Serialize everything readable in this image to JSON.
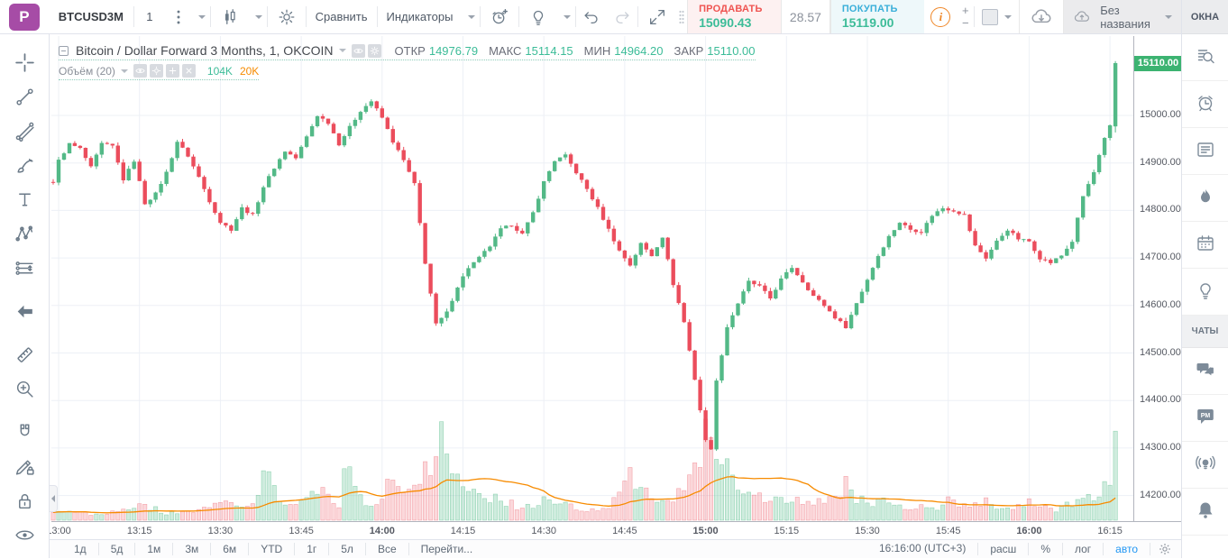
{
  "header": {
    "logo": "P",
    "symbol": "BTCUSD3M",
    "interval": "1",
    "compare_label": "Сравнить",
    "indicators_label": "Индикаторы",
    "sell_label": "ПРОДАВАТЬ",
    "sell_price": "15090.43",
    "spread": "28.57",
    "buy_label": "ПОКУПАТЬ",
    "buy_price": "15119.00",
    "plus_label": "+",
    "minus_label": "−",
    "layout_title": "Без названия",
    "icon_names": [
      "menu-dots-icon",
      "chart-style-candles-icon",
      "settings-gear-icon",
      "alert-add-icon",
      "ideas-bulb-icon",
      "undo-icon",
      "redo-icon",
      "fullscreen-icon",
      "drag-handle-icon",
      "info-icon",
      "layout-grid-icon",
      "cloud-download-icon",
      "cloud-upload-icon",
      "caret-down-icon"
    ]
  },
  "legend": {
    "title": "Bitcoin / Dollar Forward 3 Months, 1, OKCOIN",
    "open_label": "ОТКР",
    "open": "14976.79",
    "high_label": "МАКС",
    "high": "15114.15",
    "low_label": "МИН",
    "low": "14964.20",
    "close_label": "ЗАКР",
    "close": "15110.00",
    "volume_label": "Объём (20)",
    "volume_value": "104K",
    "volume_ma_value": "20K"
  },
  "left_toolbar": {
    "tools": [
      {
        "name": "crosshair-tool",
        "icon": "crosshair",
        "active": true
      },
      {
        "name": "trend-line-tool",
        "icon": "trendline"
      },
      {
        "name": "gann-fibonacci-tool",
        "icon": "gann"
      },
      {
        "name": "brush-drawing-tool",
        "icon": "brush"
      },
      {
        "name": "text-tool",
        "icon": "text"
      },
      {
        "name": "xabcd-pattern-tool",
        "icon": "pattern"
      },
      {
        "name": "forecast-tool",
        "icon": "forecast",
        "gap_after": true
      },
      {
        "name": "back-arrow-tool",
        "icon": "backarrow",
        "dark": true,
        "gap_after": true
      },
      {
        "name": "measure-ruler-tool",
        "icon": "ruler"
      },
      {
        "name": "zoom-in-tool",
        "icon": "zoomin",
        "gap_after": true
      },
      {
        "name": "magnet-mode-tool",
        "icon": "magnet"
      },
      {
        "name": "drawing-lock-tool",
        "icon": "editlock"
      },
      {
        "name": "lock-all-tool",
        "icon": "lock"
      },
      {
        "name": "hide-all-tool",
        "icon": "eye"
      }
    ]
  },
  "right_sidebar": {
    "windows_label": "ОКНА",
    "chats_label": "ЧАТЫ",
    "top_icons": [
      {
        "name": "watchlist-icon",
        "icon": "watchlist"
      },
      {
        "name": "alerts-clock-icon",
        "icon": "alarm"
      },
      {
        "name": "news-icon",
        "icon": "news"
      },
      {
        "name": "hotlist-flame-icon",
        "icon": "flame"
      },
      {
        "name": "calendar-icon",
        "icon": "calendar"
      },
      {
        "name": "ideas-bulb-icon",
        "icon": "bulb"
      }
    ],
    "chat_icons": [
      {
        "name": "public-chats-icon",
        "icon": "chats"
      },
      {
        "name": "private-messages-icon",
        "icon": "pm"
      },
      {
        "name": "broadcast-ideas-icon",
        "icon": "broadcast"
      },
      {
        "name": "notifications-bell-icon",
        "icon": "bell"
      }
    ]
  },
  "bottom_bar": {
    "ranges": [
      "1д",
      "5д",
      "1м",
      "3м",
      "6м",
      "YTD",
      "1г",
      "5л",
      "Все"
    ],
    "goto_label": "Перейти...",
    "clock": "16:16:00 (UTC+3)",
    "extended_label": "расш",
    "percent_label": "%",
    "log_label": "лог",
    "auto_label": "авто"
  },
  "chart_data": {
    "type": "candlestick",
    "title": "Bitcoin / Dollar Forward 3 Months, 1, OKCOIN",
    "exchange": "OKCOIN",
    "interval_minutes": 1,
    "x_ticks": [
      "13:00",
      "13:15",
      "13:30",
      "13:45",
      "14:00",
      "14:15",
      "14:30",
      "14:45",
      "15:00",
      "15:15",
      "15:30",
      "15:45",
      "16:00",
      "16:15"
    ],
    "x_ticks_bold": [
      "14:00",
      "15:00",
      "16:00"
    ],
    "y_ticks": [
      15000,
      14900,
      14800,
      14700,
      14600,
      14500,
      14400,
      14300,
      14200
    ],
    "ylim": [
      14160,
      15170
    ],
    "grid": true,
    "last_price_label": "15110.00",
    "last_bar": {
      "open": 14976.79,
      "high": 15114.15,
      "low": 14964.2,
      "close": 15110.0
    },
    "session_low": 14290,
    "session_high": 15114.15,
    "price_anchors": [
      [
        -1,
        14860
      ],
      [
        0,
        14905
      ],
      [
        2,
        14940
      ],
      [
        4,
        14930
      ],
      [
        6,
        14890
      ],
      [
        8,
        14940
      ],
      [
        10,
        14935
      ],
      [
        12,
        14865
      ],
      [
        14,
        14905
      ],
      [
        16,
        14815
      ],
      [
        18,
        14835
      ],
      [
        20,
        14880
      ],
      [
        22,
        14945
      ],
      [
        24,
        14915
      ],
      [
        26,
        14870
      ],
      [
        28,
        14820
      ],
      [
        30,
        14775
      ],
      [
        32,
        14760
      ],
      [
        34,
        14805
      ],
      [
        36,
        14790
      ],
      [
        38,
        14850
      ],
      [
        40,
        14890
      ],
      [
        42,
        14925
      ],
      [
        44,
        14910
      ],
      [
        46,
        14955
      ],
      [
        48,
        15000
      ],
      [
        50,
        14985
      ],
      [
        52,
        14940
      ],
      [
        54,
        14975
      ],
      [
        56,
        15010
      ],
      [
        58,
        15030
      ],
      [
        60,
        14995
      ],
      [
        62,
        14945
      ],
      [
        64,
        14905
      ],
      [
        66,
        14855
      ],
      [
        68,
        14690
      ],
      [
        70,
        14560
      ],
      [
        72,
        14585
      ],
      [
        74,
        14640
      ],
      [
        76,
        14680
      ],
      [
        78,
        14700
      ],
      [
        80,
        14725
      ],
      [
        82,
        14760
      ],
      [
        84,
        14770
      ],
      [
        86,
        14750
      ],
      [
        88,
        14795
      ],
      [
        90,
        14860
      ],
      [
        92,
        14905
      ],
      [
        94,
        14915
      ],
      [
        96,
        14880
      ],
      [
        98,
        14845
      ],
      [
        100,
        14805
      ],
      [
        102,
        14760
      ],
      [
        104,
        14715
      ],
      [
        106,
        14685
      ],
      [
        108,
        14730
      ],
      [
        110,
        14705
      ],
      [
        112,
        14745
      ],
      [
        114,
        14645
      ],
      [
        116,
        14565
      ],
      [
        118,
        14445
      ],
      [
        120,
        14315
      ],
      [
        121,
        14300
      ],
      [
        122,
        14440
      ],
      [
        124,
        14555
      ],
      [
        126,
        14605
      ],
      [
        128,
        14650
      ],
      [
        130,
        14640
      ],
      [
        132,
        14615
      ],
      [
        134,
        14655
      ],
      [
        136,
        14680
      ],
      [
        138,
        14650
      ],
      [
        140,
        14620
      ],
      [
        142,
        14600
      ],
      [
        144,
        14575
      ],
      [
        146,
        14555
      ],
      [
        148,
        14605
      ],
      [
        150,
        14655
      ],
      [
        152,
        14705
      ],
      [
        154,
        14745
      ],
      [
        156,
        14775
      ],
      [
        158,
        14760
      ],
      [
        160,
        14755
      ],
      [
        162,
        14790
      ],
      [
        164,
        14805
      ],
      [
        166,
        14800
      ],
      [
        168,
        14790
      ],
      [
        170,
        14725
      ],
      [
        172,
        14700
      ],
      [
        174,
        14735
      ],
      [
        176,
        14760
      ],
      [
        178,
        14740
      ],
      [
        180,
        14735
      ],
      [
        182,
        14700
      ],
      [
        184,
        14690
      ],
      [
        186,
        14705
      ],
      [
        188,
        14735
      ],
      [
        190,
        14830
      ],
      [
        192,
        14880
      ],
      [
        194,
        14950
      ],
      [
        195,
        14976.8
      ],
      [
        196,
        15110
      ]
    ],
    "volume_anchors_k": [
      [
        -1,
        8
      ],
      [
        2,
        10
      ],
      [
        6,
        8
      ],
      [
        10,
        10
      ],
      [
        14,
        12
      ],
      [
        16,
        18
      ],
      [
        20,
        8
      ],
      [
        24,
        10
      ],
      [
        28,
        14
      ],
      [
        31,
        20
      ],
      [
        34,
        12
      ],
      [
        37,
        25
      ],
      [
        39,
        68
      ],
      [
        41,
        20
      ],
      [
        44,
        15
      ],
      [
        47,
        30
      ],
      [
        50,
        35
      ],
      [
        52,
        20
      ],
      [
        54,
        78
      ],
      [
        56,
        25
      ],
      [
        58,
        20
      ],
      [
        60,
        25
      ],
      [
        62,
        50
      ],
      [
        64,
        30
      ],
      [
        66,
        35
      ],
      [
        68,
        55
      ],
      [
        70,
        75
      ],
      [
        71,
        128
      ],
      [
        72,
        90
      ],
      [
        73,
        60
      ],
      [
        75,
        45
      ],
      [
        77,
        40
      ],
      [
        79,
        30
      ],
      [
        81,
        25
      ],
      [
        83,
        20
      ],
      [
        86,
        15
      ],
      [
        88,
        18
      ],
      [
        90,
        22
      ],
      [
        92,
        25
      ],
      [
        94,
        18
      ],
      [
        96,
        15
      ],
      [
        98,
        12
      ],
      [
        100,
        15
      ],
      [
        102,
        18
      ],
      [
        104,
        28
      ],
      [
        106,
        52
      ],
      [
        108,
        30
      ],
      [
        110,
        35
      ],
      [
        112,
        20
      ],
      [
        114,
        30
      ],
      [
        116,
        45
      ],
      [
        118,
        62
      ],
      [
        119,
        78
      ],
      [
        120,
        92
      ],
      [
        121,
        95
      ],
      [
        122,
        82
      ],
      [
        124,
        56
      ],
      [
        126,
        40
      ],
      [
        128,
        35
      ],
      [
        130,
        25
      ],
      [
        132,
        20
      ],
      [
        134,
        30
      ],
      [
        136,
        25
      ],
      [
        138,
        20
      ],
      [
        140,
        18
      ],
      [
        142,
        22
      ],
      [
        144,
        30
      ],
      [
        146,
        46
      ],
      [
        148,
        25
      ],
      [
        150,
        20
      ],
      [
        152,
        25
      ],
      [
        154,
        20
      ],
      [
        156,
        18
      ],
      [
        158,
        15
      ],
      [
        160,
        20
      ],
      [
        162,
        15
      ],
      [
        164,
        18
      ],
      [
        166,
        25
      ],
      [
        168,
        15
      ],
      [
        170,
        20
      ],
      [
        172,
        22
      ],
      [
        174,
        15
      ],
      [
        176,
        12
      ],
      [
        178,
        15
      ],
      [
        180,
        20
      ],
      [
        182,
        15
      ],
      [
        184,
        12
      ],
      [
        186,
        15
      ],
      [
        188,
        18
      ],
      [
        190,
        25
      ],
      [
        192,
        30
      ],
      [
        194,
        35
      ],
      [
        195,
        42
      ],
      [
        196,
        104
      ]
    ],
    "volume_last_k": 104,
    "volume_ma_period": 20,
    "colors": {
      "up": "#53b987",
      "down": "#eb4d5c",
      "volume_up": "rgba(83,185,135,0.28)",
      "volume_down": "rgba(235,77,92,0.22)",
      "volume_up_border": "rgba(83,185,135,0.55)",
      "volume_down_border": "rgba(235,77,92,0.45)",
      "volume_ma_line": "#f78b00",
      "grid": "#edf0f6",
      "badge_bg": "#3cb371",
      "value_green": "#3cbc98"
    }
  }
}
